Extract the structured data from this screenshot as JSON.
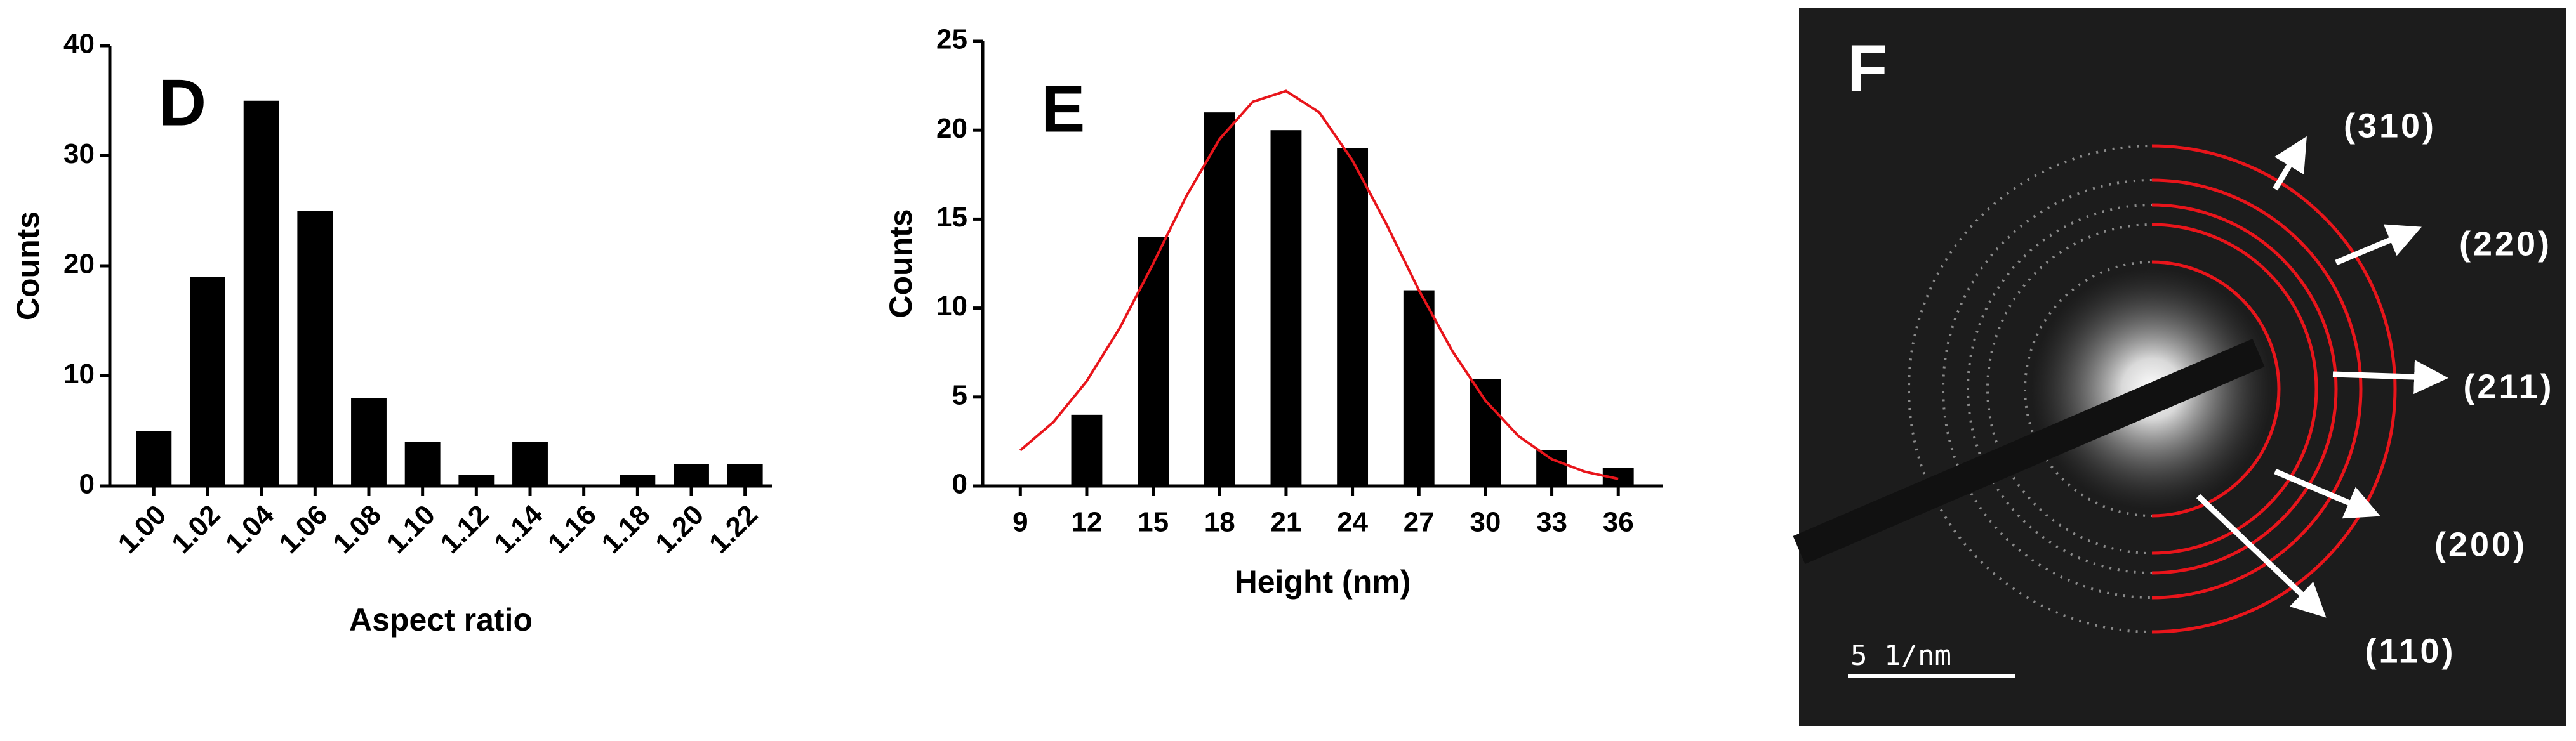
{
  "chart_data": [
    {
      "type": "bar",
      "panel_label": "D",
      "x_label": "Aspect ratio",
      "y_label": "Counts",
      "categories": [
        "1.00",
        "1.02",
        "1.04",
        "1.06",
        "1.08",
        "1.10",
        "1.12",
        "1.14",
        "1.16",
        "1.18",
        "1.20",
        "1.22"
      ],
      "values": [
        5,
        19,
        35,
        25,
        8,
        4,
        1,
        4,
        0,
        1,
        2,
        2
      ],
      "color": "#000000",
      "ylim": [
        0,
        40
      ],
      "yticks": [
        0,
        10,
        20,
        30,
        40
      ]
    },
    {
      "type": "bar",
      "panel_label": "E",
      "x_label": "Height (nm)",
      "y_label": "Counts",
      "x": [
        12,
        15,
        18,
        21,
        24,
        27,
        30,
        33,
        36
      ],
      "values": [
        4,
        14,
        21,
        20,
        19,
        11,
        6,
        2,
        1
      ],
      "color": "#000000",
      "xlim": [
        7.3,
        38
      ],
      "xticks": [
        9,
        12,
        15,
        18,
        21,
        24,
        27,
        30,
        33,
        36
      ],
      "ylim": [
        0,
        25
      ],
      "yticks": [
        0,
        5,
        10,
        15,
        20,
        25
      ],
      "fit": {
        "color": "#e8151b",
        "x": [
          9,
          10.5,
          12,
          13.5,
          15,
          16.5,
          18,
          19.5,
          21,
          22.5,
          24,
          25.5,
          27,
          28.5,
          30,
          31.5,
          33,
          34.5,
          36
        ],
        "values": [
          2.0,
          3.6,
          5.9,
          8.9,
          12.5,
          16.3,
          19.5,
          21.6,
          22.2,
          21.0,
          18.3,
          14.8,
          11.0,
          7.6,
          4.8,
          2.8,
          1.5,
          0.8,
          0.4
        ]
      }
    }
  ],
  "panel_f": {
    "label": "F",
    "ring_labels": [
      "(310)",
      "(220)",
      "(211)",
      "(200)",
      "(110)"
    ],
    "scale_bar": "5 1/nm"
  }
}
